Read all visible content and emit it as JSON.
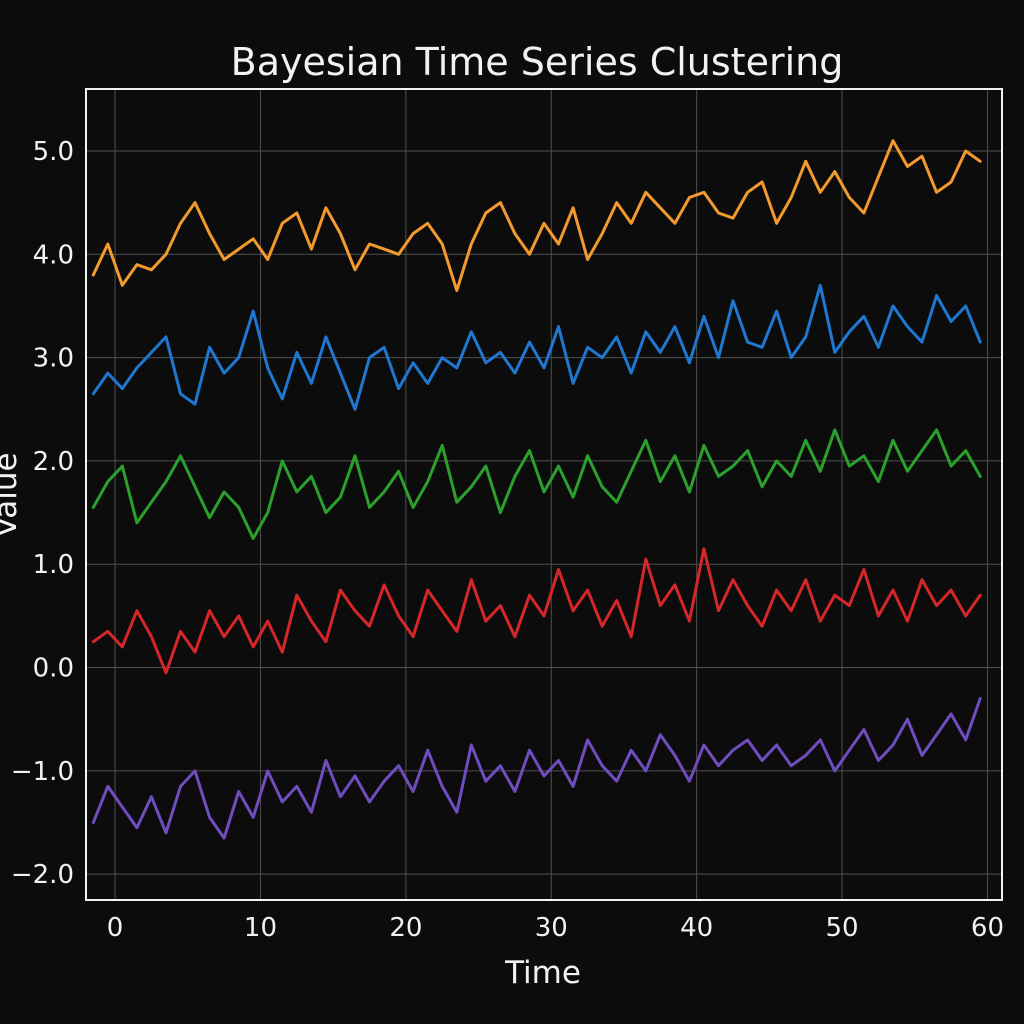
{
  "chart_data": {
    "type": "line",
    "title": "Bayesian Time Series Clustering",
    "xlabel": "Time",
    "ylabel": "Value",
    "xlim": [
      -2,
      61
    ],
    "ylim": [
      -2.25,
      5.6
    ],
    "x_ticks": [
      0,
      10,
      20,
      30,
      40,
      50,
      60
    ],
    "y_ticks": [
      -2.0,
      -1.0,
      0.0,
      1.0,
      2.0,
      3.0,
      4.0,
      5.0
    ],
    "x_tick_labels": [
      "0",
      "10",
      "20",
      "30",
      "40",
      "50",
      "60"
    ],
    "y_tick_labels": [
      "−2.0",
      "−1.0",
      "0.0",
      "1.0",
      "2.0",
      "3.0",
      "4.0",
      "5.0"
    ],
    "grid": true,
    "legend": "none",
    "background": "#0c0c0c",
    "x": [
      -1.5,
      -0.5,
      0.5,
      1.5,
      2.5,
      3.5,
      4.5,
      5.5,
      6.5,
      7.5,
      8.5,
      9.5,
      10.5,
      11.5,
      12.5,
      13.5,
      14.5,
      15.5,
      16.5,
      17.5,
      18.5,
      19.5,
      20.5,
      21.5,
      22.5,
      23.5,
      24.5,
      25.5,
      26.5,
      27.5,
      28.5,
      29.5,
      30.5,
      31.5,
      32.5,
      33.5,
      34.5,
      35.5,
      36.5,
      37.5,
      38.5,
      39.5,
      40.5,
      41.5,
      42.5,
      43.5,
      44.5,
      45.5,
      46.5,
      47.5,
      48.5,
      49.5,
      50.5,
      51.5,
      52.5,
      53.5,
      54.5,
      55.5,
      56.5,
      57.5,
      58.5,
      59.5
    ],
    "series": [
      {
        "color": "#f39a2e",
        "values": [
          3.8,
          4.1,
          3.7,
          3.9,
          3.85,
          4.0,
          4.3,
          4.5,
          4.2,
          3.95,
          4.05,
          4.15,
          3.95,
          4.3,
          4.4,
          4.05,
          4.45,
          4.2,
          3.85,
          4.1,
          4.05,
          4.0,
          4.2,
          4.3,
          4.1,
          3.65,
          4.1,
          4.4,
          4.5,
          4.2,
          4.0,
          4.3,
          4.1,
          4.45,
          3.95,
          4.2,
          4.5,
          4.3,
          4.6,
          4.45,
          4.3,
          4.55,
          4.6,
          4.4,
          4.35,
          4.6,
          4.7,
          4.3,
          4.55,
          4.9,
          4.6,
          4.8,
          4.55,
          4.4,
          4.75,
          5.1,
          4.85,
          4.95,
          4.6,
          4.7,
          5.0,
          4.9
        ]
      },
      {
        "color": "#1f77d0",
        "values": [
          2.65,
          2.85,
          2.7,
          2.9,
          3.05,
          3.2,
          2.65,
          2.55,
          3.1,
          2.85,
          3.0,
          3.45,
          2.9,
          2.6,
          3.05,
          2.75,
          3.2,
          2.85,
          2.5,
          3.0,
          3.1,
          2.7,
          2.95,
          2.75,
          3.0,
          2.9,
          3.25,
          2.95,
          3.05,
          2.85,
          3.15,
          2.9,
          3.3,
          2.75,
          3.1,
          3.0,
          3.2,
          2.85,
          3.25,
          3.05,
          3.3,
          2.95,
          3.4,
          3.0,
          3.55,
          3.15,
          3.1,
          3.45,
          3.0,
          3.2,
          3.7,
          3.05,
          3.25,
          3.4,
          3.1,
          3.5,
          3.3,
          3.15,
          3.6,
          3.35,
          3.5,
          3.15
        ]
      },
      {
        "color": "#2ca02c",
        "values": [
          1.55,
          1.8,
          1.95,
          1.4,
          1.6,
          1.8,
          2.05,
          1.75,
          1.45,
          1.7,
          1.55,
          1.25,
          1.5,
          2.0,
          1.7,
          1.85,
          1.5,
          1.65,
          2.05,
          1.55,
          1.7,
          1.9,
          1.55,
          1.8,
          2.15,
          1.6,
          1.75,
          1.95,
          1.5,
          1.85,
          2.1,
          1.7,
          1.95,
          1.65,
          2.05,
          1.75,
          1.6,
          1.9,
          2.2,
          1.8,
          2.05,
          1.7,
          2.15,
          1.85,
          1.95,
          2.1,
          1.75,
          2.0,
          1.85,
          2.2,
          1.9,
          2.3,
          1.95,
          2.05,
          1.8,
          2.2,
          1.9,
          2.1,
          2.3,
          1.95,
          2.1,
          1.85
        ]
      },
      {
        "color": "#d62728",
        "values": [
          0.25,
          0.35,
          0.2,
          0.55,
          0.3,
          -0.05,
          0.35,
          0.15,
          0.55,
          0.3,
          0.5,
          0.2,
          0.45,
          0.15,
          0.7,
          0.45,
          0.25,
          0.75,
          0.55,
          0.4,
          0.8,
          0.5,
          0.3,
          0.75,
          0.55,
          0.35,
          0.85,
          0.45,
          0.6,
          0.3,
          0.7,
          0.5,
          0.95,
          0.55,
          0.75,
          0.4,
          0.65,
          0.3,
          1.05,
          0.6,
          0.8,
          0.45,
          1.15,
          0.55,
          0.85,
          0.6,
          0.4,
          0.75,
          0.55,
          0.85,
          0.45,
          0.7,
          0.6,
          0.95,
          0.5,
          0.75,
          0.45,
          0.85,
          0.6,
          0.75,
          0.5,
          0.7
        ]
      },
      {
        "color": "#6f4dbf",
        "values": [
          -1.5,
          -1.15,
          -1.35,
          -1.55,
          -1.25,
          -1.6,
          -1.15,
          -1.0,
          -1.45,
          -1.65,
          -1.2,
          -1.45,
          -1.0,
          -1.3,
          -1.15,
          -1.4,
          -0.9,
          -1.25,
          -1.05,
          -1.3,
          -1.1,
          -0.95,
          -1.2,
          -0.8,
          -1.15,
          -1.4,
          -0.75,
          -1.1,
          -0.95,
          -1.2,
          -0.8,
          -1.05,
          -0.9,
          -1.15,
          -0.7,
          -0.95,
          -1.1,
          -0.8,
          -1.0,
          -0.65,
          -0.85,
          -1.1,
          -0.75,
          -0.95,
          -0.8,
          -0.7,
          -0.9,
          -0.75,
          -0.95,
          -0.85,
          -0.7,
          -1.0,
          -0.8,
          -0.6,
          -0.9,
          -0.75,
          -0.5,
          -0.85,
          -0.65,
          -0.45,
          -0.7,
          -0.3
        ]
      }
    ]
  }
}
